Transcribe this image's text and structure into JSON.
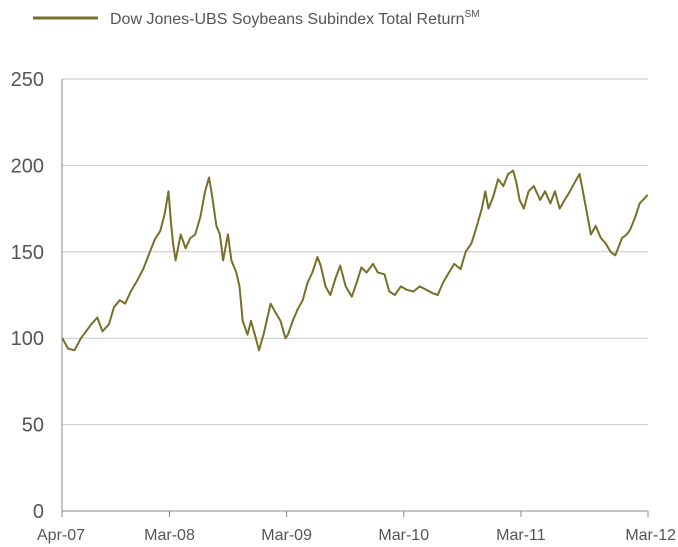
{
  "chart_data": {
    "type": "line",
    "legend": {
      "placement": "top-left",
      "label": "Dow Jones-UBS Soybeans Subindex Total Return",
      "label_superscript": "SM"
    },
    "ylim": [
      0,
      250
    ],
    "y_ticks": [
      0,
      50,
      100,
      150,
      200,
      250
    ],
    "y_tick_labels": [
      "0",
      "50",
      "100",
      "150",
      "200",
      "250"
    ],
    "x_range": [
      "2007-04",
      "2012-03"
    ],
    "x_ticks": [
      "2007-04",
      "2008-03",
      "2009-03",
      "2010-03",
      "2011-03",
      "2012-03"
    ],
    "x_tick_labels": [
      "Apr-07",
      "Mar-08",
      "Mar-09",
      "Mar-10",
      "Mar-11",
      "Mar-12"
    ],
    "grid": {
      "horizontal": true,
      "vertical": false
    },
    "colors": {
      "series": "#76702a",
      "grid": "#c8c8c8",
      "axis": "#888888",
      "text": "#555555"
    },
    "series": [
      {
        "name": "Dow Jones-UBS Soybeans Subindex Total Return",
        "points": [
          [
            "2007-04-02",
            100
          ],
          [
            "2007-04-20",
            94
          ],
          [
            "2007-05-10",
            93
          ],
          [
            "2007-05-30",
            100
          ],
          [
            "2007-06-15",
            104
          ],
          [
            "2007-07-01",
            108
          ],
          [
            "2007-07-20",
            112
          ],
          [
            "2007-08-05",
            104
          ],
          [
            "2007-08-25",
            108
          ],
          [
            "2007-09-10",
            118
          ],
          [
            "2007-09-28",
            122
          ],
          [
            "2007-10-15",
            120
          ],
          [
            "2007-11-01",
            127
          ],
          [
            "2007-11-20",
            133
          ],
          [
            "2007-12-10",
            140
          ],
          [
            "2007-12-31",
            150
          ],
          [
            "2008-01-15",
            157
          ],
          [
            "2008-02-01",
            162
          ],
          [
            "2008-02-15",
            172
          ],
          [
            "2008-02-27",
            185
          ],
          [
            "2008-03-05",
            168
          ],
          [
            "2008-03-12",
            155
          ],
          [
            "2008-03-20",
            145
          ],
          [
            "2008-04-05",
            160
          ],
          [
            "2008-04-20",
            152
          ],
          [
            "2008-05-05",
            158
          ],
          [
            "2008-05-20",
            160
          ],
          [
            "2008-06-05",
            170
          ],
          [
            "2008-06-20",
            185
          ],
          [
            "2008-07-02",
            193
          ],
          [
            "2008-07-12",
            182
          ],
          [
            "2008-07-25",
            165
          ],
          [
            "2008-08-05",
            160
          ],
          [
            "2008-08-15",
            145
          ],
          [
            "2008-08-30",
            160
          ],
          [
            "2008-09-10",
            145
          ],
          [
            "2008-09-25",
            138
          ],
          [
            "2008-10-05",
            130
          ],
          [
            "2008-10-15",
            110
          ],
          [
            "2008-10-30",
            102
          ],
          [
            "2008-11-10",
            110
          ],
          [
            "2008-11-25",
            100
          ],
          [
            "2008-12-05",
            93
          ],
          [
            "2008-12-20",
            103
          ],
          [
            "2009-01-10",
            120
          ],
          [
            "2009-01-25",
            115
          ],
          [
            "2009-02-10",
            110
          ],
          [
            "2009-02-25",
            100
          ],
          [
            "2009-03-05",
            102
          ],
          [
            "2009-03-20",
            110
          ],
          [
            "2009-04-05",
            117
          ],
          [
            "2009-04-20",
            122
          ],
          [
            "2009-05-05",
            132
          ],
          [
            "2009-05-20",
            138
          ],
          [
            "2009-06-05",
            147
          ],
          [
            "2009-06-15",
            142
          ],
          [
            "2009-06-30",
            130
          ],
          [
            "2009-07-15",
            125
          ],
          [
            "2009-08-01",
            135
          ],
          [
            "2009-08-15",
            142
          ],
          [
            "2009-09-01",
            130
          ],
          [
            "2009-09-20",
            124
          ],
          [
            "2009-10-05",
            132
          ],
          [
            "2009-10-20",
            141
          ],
          [
            "2009-11-05",
            138
          ],
          [
            "2009-11-25",
            143
          ],
          [
            "2009-12-10",
            138
          ],
          [
            "2009-12-31",
            137
          ],
          [
            "2010-01-15",
            127
          ],
          [
            "2010-02-01",
            125
          ],
          [
            "2010-02-20",
            130
          ],
          [
            "2010-03-10",
            128
          ],
          [
            "2010-03-31",
            127
          ],
          [
            "2010-04-20",
            130
          ],
          [
            "2010-05-10",
            128
          ],
          [
            "2010-05-31",
            126
          ],
          [
            "2010-06-15",
            125
          ],
          [
            "2010-07-01",
            132
          ],
          [
            "2010-07-20",
            138
          ],
          [
            "2010-08-05",
            143
          ],
          [
            "2010-08-25",
            140
          ],
          [
            "2010-09-10",
            150
          ],
          [
            "2010-09-28",
            155
          ],
          [
            "2010-10-15",
            165
          ],
          [
            "2010-10-30",
            175
          ],
          [
            "2010-11-10",
            185
          ],
          [
            "2010-11-20",
            175
          ],
          [
            "2010-12-05",
            182
          ],
          [
            "2010-12-20",
            192
          ],
          [
            "2011-01-05",
            188
          ],
          [
            "2011-01-20",
            195
          ],
          [
            "2011-02-05",
            197
          ],
          [
            "2011-02-15",
            190
          ],
          [
            "2011-02-25",
            180
          ],
          [
            "2011-03-10",
            175
          ],
          [
            "2011-03-25",
            185
          ],
          [
            "2011-04-10",
            188
          ],
          [
            "2011-04-30",
            180
          ],
          [
            "2011-05-15",
            185
          ],
          [
            "2011-06-01",
            178
          ],
          [
            "2011-06-15",
            185
          ],
          [
            "2011-06-30",
            175
          ],
          [
            "2011-07-15",
            180
          ],
          [
            "2011-08-01",
            185
          ],
          [
            "2011-08-15",
            190
          ],
          [
            "2011-08-31",
            195
          ],
          [
            "2011-09-10",
            185
          ],
          [
            "2011-09-20",
            175
          ],
          [
            "2011-10-05",
            160
          ],
          [
            "2011-10-20",
            165
          ],
          [
            "2011-11-05",
            158
          ],
          [
            "2011-11-20",
            155
          ],
          [
            "2011-12-05",
            150
          ],
          [
            "2011-12-20",
            148
          ],
          [
            "2012-01-10",
            158
          ],
          [
            "2012-01-25",
            160
          ],
          [
            "2012-02-05",
            163
          ],
          [
            "2012-02-20",
            170
          ],
          [
            "2012-03-05",
            178
          ],
          [
            "2012-03-15",
            180
          ],
          [
            "2012-03-30",
            183
          ]
        ]
      }
    ]
  }
}
